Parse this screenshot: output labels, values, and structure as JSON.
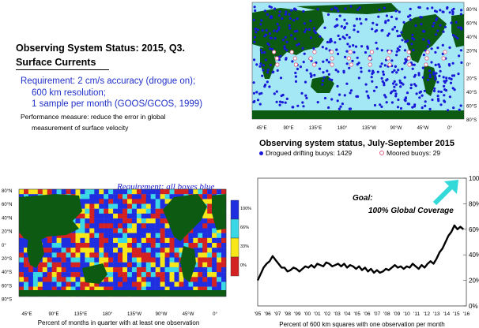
{
  "header": {
    "title_line1": "Observing System Status:  2015, Q3.",
    "title_line2": "Surface Currents",
    "requirement_lines": [
      "Requirement: 2 cm/s accuracy (drogue on);",
      "600 km resolution;",
      "1 sample per month (GOOS/GCOS, 1999)"
    ],
    "performance_lines": [
      "Performance measure: reduce the error in global",
      "measurement of surface velocity"
    ]
  },
  "colors": {
    "ocean": "#a5e8f5",
    "land": "#0d5a12",
    "drifter": "#1818d8",
    "moored": "#e36080",
    "goal_arrow": "#33d8d8"
  },
  "buoy_map": {
    "caption": "Observing system status, July-September 2015",
    "legend_drifting": "Drogued drifting buoys: 1429",
    "legend_moored": "Moored buoys: 29",
    "lat_labels": [
      "80°N",
      "60°N",
      "40°N",
      "20°N",
      "0°",
      "20°S",
      "40°S",
      "60°S",
      "80°S"
    ],
    "lon_labels": [
      "45°E",
      "90°E",
      "135°E",
      "180°",
      "135°W",
      "90°W",
      "45°W",
      "0°"
    ]
  },
  "coverage_map": {
    "requirement_title": "Requirement: all boxes blue",
    "xlabel": "Percent of months in quarter with at least one observation",
    "lat_labels": [
      "80°N",
      "60°N",
      "40°N",
      "20°N",
      "0°",
      "20°S",
      "40°S",
      "60°S",
      "80°S"
    ],
    "lon_labels": [
      "45°E",
      "90°E",
      "135°E",
      "180°",
      "135°W",
      "90°W",
      "45°W",
      "0°"
    ],
    "colorbar": [
      {
        "label": "100%",
        "color": "#1f2fe0"
      },
      {
        "label": "66%",
        "color": "#3ad7e6"
      },
      {
        "label": "33%",
        "color": "#f6e61a"
      },
      {
        "label": "0%",
        "color": "#d42222"
      }
    ]
  },
  "chart_data": {
    "type": "line",
    "xlabel": "Percent of 600 km squares with one observation per month",
    "ylabel": "",
    "x_tick_labels": [
      "'95",
      "'96",
      "'97",
      "'98",
      "'99",
      "'00",
      "'01",
      "'02",
      "'03",
      "'04",
      "'05",
      "'06",
      "'07",
      "'08",
      "'09",
      "'10",
      "'11",
      "'12",
      "'13",
      "'14",
      "'15",
      "'16"
    ],
    "y_tick_labels": [
      "0%",
      "20%",
      "40%",
      "60%",
      "80%",
      "100%"
    ],
    "ylim": [
      0,
      100
    ],
    "xlim": [
      1995,
      2016
    ],
    "annotation_line1": "Goal:",
    "annotation_line2": "100% Global Coverage",
    "series": [
      {
        "x": [
          1995.0,
          1995.3,
          1995.6,
          1995.9,
          1996.2,
          1996.5,
          1996.8,
          1997.1,
          1997.4,
          1997.7,
          1998.0,
          1998.3,
          1998.6,
          1998.9,
          1999.2,
          1999.5,
          1999.8,
          2000.1,
          2000.4,
          2000.7,
          2001.0,
          2001.3,
          2001.6,
          2001.9,
          2002.2,
          2002.5,
          2002.8,
          2003.1,
          2003.4,
          2003.7,
          2004.0,
          2004.3,
          2004.6,
          2004.9,
          2005.2,
          2005.5,
          2005.8,
          2006.1,
          2006.4,
          2006.7,
          2007.0,
          2007.3,
          2007.6,
          2007.9,
          2008.2,
          2008.5,
          2008.8,
          2009.1,
          2009.4,
          2009.7,
          2010.0,
          2010.3,
          2010.6,
          2010.9,
          2011.2,
          2011.5,
          2011.8,
          2012.1,
          2012.4,
          2012.7,
          2013.0,
          2013.3,
          2013.6,
          2013.9,
          2014.2,
          2014.5,
          2014.8,
          2015.1,
          2015.4,
          2015.7
        ],
        "values": [
          20,
          25,
          30,
          33,
          35,
          39,
          36,
          33,
          30,
          30,
          27,
          28,
          30,
          29,
          27,
          29,
          31,
          30,
          32,
          30,
          33,
          32,
          31,
          34,
          33,
          31,
          32,
          33,
          31,
          33,
          30,
          32,
          31,
          29,
          31,
          28,
          30,
          27,
          29,
          26,
          28,
          26,
          27,
          29,
          28,
          30,
          32,
          30,
          31,
          29,
          31,
          30,
          33,
          31,
          29,
          32,
          30,
          33,
          35,
          33,
          37,
          42,
          45,
          50,
          55,
          58,
          63,
          60,
          62,
          60
        ]
      }
    ]
  }
}
